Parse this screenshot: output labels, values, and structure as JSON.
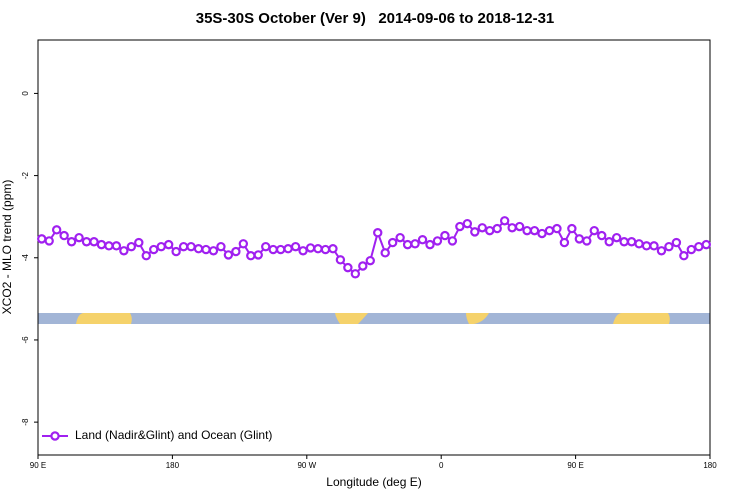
{
  "chart_data": {
    "type": "line",
    "title": "35S-30S October (Ver 9)   2014-09-06 to 2018-12-31",
    "xlabel": "Longitude (deg E)",
    "ylabel": "XCO2 - MLO trend (ppm)",
    "xlim": [
      90,
      540
    ],
    "xticks": [
      {
        "value": 90,
        "label": "90 E"
      },
      180,
      {
        "value": 270,
        "label": "90 W"
      },
      {
        "value": 360,
        "label": "0"
      },
      {
        "value": 450,
        "label": "90 E"
      },
      {
        "value": 540,
        "label": "180"
      }
    ],
    "ylim": [
      -8.8,
      1.3
    ],
    "yticks": [
      0,
      -2,
      -4,
      -6,
      -8
    ],
    "legend": "bottom-left",
    "x": [
      92.5,
      97.5,
      102.5,
      107.5,
      112.5,
      117.5,
      122.5,
      127.5,
      132.5,
      137.5,
      142.5,
      147.5,
      152.5,
      157.5,
      162.5,
      167.5,
      172.5,
      177.5,
      182.5,
      187.5,
      192.5,
      197.5,
      202.5,
      207.5,
      212.5,
      217.5,
      222.5,
      227.5,
      232.5,
      237.5,
      242.5,
      247.5,
      252.5,
      257.5,
      262.5,
      267.5,
      272.5,
      277.5,
      282.5,
      287.5,
      292.5,
      297.5,
      302.5,
      307.5,
      312.5,
      317.5,
      322.5,
      327.5,
      332.5,
      337.5,
      342.5,
      347.5,
      352.5,
      357.5,
      362.5,
      367.5,
      372.5,
      377.5,
      382.5,
      387.5,
      392.5,
      397.5,
      402.5,
      407.5,
      412.5,
      417.5,
      422.5,
      427.5,
      432.5,
      437.5,
      442.5,
      447.5,
      452.5,
      457.5,
      462.5,
      467.5,
      472.5,
      477.5,
      482.5,
      487.5,
      492.5,
      497.5,
      502.5,
      507.5,
      512.5,
      517.5,
      522.5,
      527.5,
      532.5,
      537.5
    ],
    "series": [
      {
        "name": "Land (Nadir&Glint) and Ocean (Glint)",
        "color": "#a020f0",
        "values": [
          -3.54,
          -3.59,
          -3.32,
          -3.46,
          -3.61,
          -3.51,
          -3.61,
          -3.61,
          -3.68,
          -3.71,
          -3.71,
          -3.83,
          -3.73,
          -3.63,
          -3.95,
          -3.8,
          -3.73,
          -3.68,
          -3.85,
          -3.73,
          -3.73,
          -3.78,
          -3.8,
          -3.83,
          -3.73,
          -3.93,
          -3.85,
          -3.66,
          -3.95,
          -3.93,
          -3.73,
          -3.8,
          -3.8,
          -3.78,
          -3.73,
          -3.83,
          -3.76,
          -3.78,
          -3.8,
          -3.78,
          -4.05,
          -4.24,
          -4.39,
          -4.2,
          -4.07,
          -3.39,
          -3.88,
          -3.63,
          -3.51,
          -3.68,
          -3.66,
          -3.56,
          -3.68,
          -3.59,
          -3.46,
          -3.59,
          -3.24,
          -3.17,
          -3.37,
          -3.27,
          -3.34,
          -3.29,
          -3.1,
          -3.27,
          -3.24,
          -3.34,
          -3.34,
          -3.41,
          -3.34,
          -3.29,
          -3.63,
          -3.29,
          -3.54,
          -3.59,
          -3.34,
          -3.46,
          -3.61,
          -3.51,
          -3.61,
          -3.61,
          -3.66,
          -3.71,
          -3.71,
          -3.83,
          -3.73,
          -3.63,
          -3.95,
          -3.8,
          -3.73,
          -3.68
        ]
      }
    ]
  }
}
